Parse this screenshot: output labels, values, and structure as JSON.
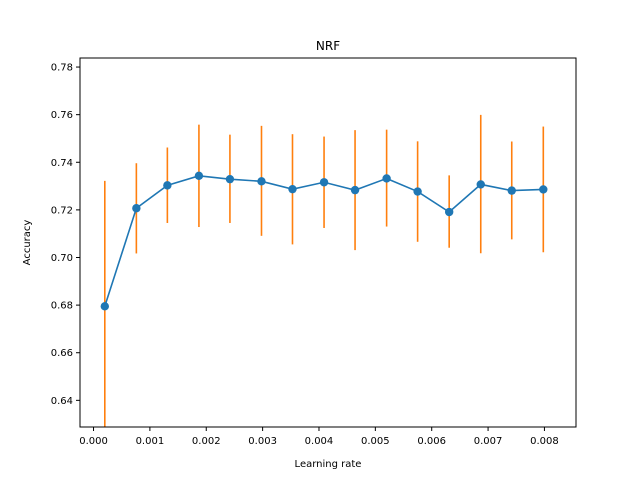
{
  "chart_data": {
    "type": "line",
    "title": "NRF",
    "xlabel": "Learning rate",
    "ylabel": "Accuracy",
    "xlim": [
      -0.00024,
      0.00856
    ],
    "ylim": [
      0.6288,
      0.7838
    ],
    "grid": false,
    "legend": "none",
    "xticks": [
      "0.000",
      "0.001",
      "0.002",
      "0.003",
      "0.004",
      "0.005",
      "0.006",
      "0.007",
      "0.008"
    ],
    "xtick_values": [
      0,
      0.001,
      0.002,
      0.003,
      0.004,
      0.005,
      0.006,
      0.007,
      0.008
    ],
    "yticks": [
      "0.64",
      "0.66",
      "0.68",
      "0.70",
      "0.72",
      "0.74",
      "0.76",
      "0.78"
    ],
    "ytick_values": [
      0.64,
      0.66,
      0.68,
      0.7,
      0.72,
      0.74,
      0.76,
      0.78
    ],
    "colors": {
      "line": "#1f77b4",
      "errorbar": "#ff7f0e"
    },
    "series": [
      {
        "x": [
          0.0002,
          0.00076,
          0.00131,
          0.00187,
          0.00242,
          0.00298,
          0.00353,
          0.00409,
          0.00464,
          0.0052,
          0.00575,
          0.00631,
          0.00687,
          0.00742,
          0.00798
        ],
        "y": [
          0.6795,
          0.7207,
          0.7303,
          0.7343,
          0.7329,
          0.732,
          0.7287,
          0.7316,
          0.7283,
          0.7332,
          0.7277,
          0.7191,
          0.7307,
          0.7281,
          0.7286
        ],
        "err_low": [
          0.626,
          0.7017,
          0.7145,
          0.7128,
          0.7145,
          0.7091,
          0.7055,
          0.7124,
          0.7031,
          0.713,
          0.7066,
          0.7041,
          0.7018,
          0.7076,
          0.7022
        ],
        "err_high": [
          0.7322,
          0.7396,
          0.7462,
          0.7558,
          0.7516,
          0.7553,
          0.7518,
          0.7508,
          0.7535,
          0.7537,
          0.7488,
          0.7345,
          0.7599,
          0.7487,
          0.755
        ]
      }
    ]
  }
}
